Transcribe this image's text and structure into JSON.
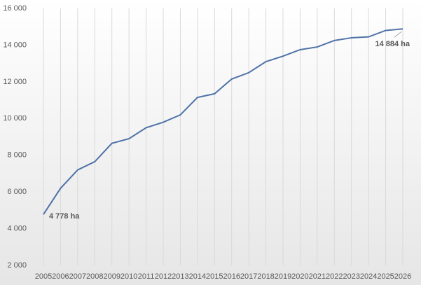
{
  "chart_data": {
    "type": "line",
    "categories": [
      "2005",
      "2006",
      "2007",
      "2008",
      "2009",
      "2010",
      "2011",
      "2012",
      "2013",
      "2014",
      "2015",
      "2016",
      "2017",
      "2018",
      "2019",
      "2020",
      "2021",
      "2022",
      "2023",
      "2024",
      "2025",
      "2026"
    ],
    "values": [
      4778,
      6200,
      7200,
      7650,
      8650,
      8900,
      9500,
      9800,
      10200,
      11150,
      11350,
      12150,
      12500,
      13100,
      13400,
      13750,
      13900,
      14250,
      14400,
      14450,
      14800,
      14884
    ],
    "value_labels": [
      "4 778 ha",
      null,
      null,
      null,
      null,
      null,
      null,
      null,
      null,
      null,
      null,
      null,
      null,
      null,
      null,
      null,
      null,
      null,
      null,
      null,
      null,
      "14 884 ha"
    ],
    "color": "#4f72a8",
    "ylim": [
      2000,
      16000
    ],
    "yticks": [
      {
        "value": 2000,
        "label": "2 000"
      },
      {
        "value": 4000,
        "label": "4 000"
      },
      {
        "value": 6000,
        "label": "6 000"
      },
      {
        "value": 8000,
        "label": "8 000"
      },
      {
        "value": 10000,
        "label": "10 000"
      },
      {
        "value": 12000,
        "label": "12 000"
      },
      {
        "value": 14000,
        "label": "14 000"
      },
      {
        "value": 16000,
        "label": "16 000"
      }
    ],
    "grid": true
  }
}
